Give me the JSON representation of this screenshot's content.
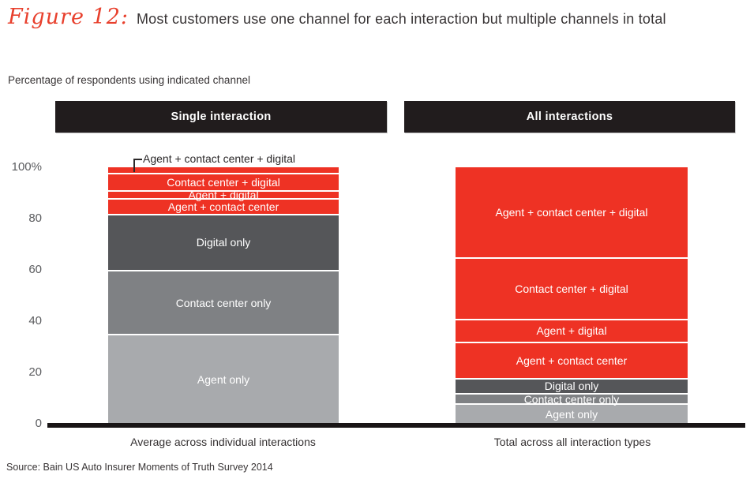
{
  "figure_label": "Figure 12:",
  "title": "Most customers use one channel for each interaction but multiple channels in total",
  "subtitle": "Percentage of respondents using indicated channel",
  "source": "Source: Bain US Auto Insurer Moments of Truth Survey 2014",
  "colors": {
    "red": "#ee3224",
    "dark_gray": "#555659",
    "medium_gray": "#7f8184",
    "light_gray": "#a8aaad",
    "header_bg": "#211c1d",
    "axis_line": "#191516",
    "segment_text": "#ffffff",
    "figure_label_red": "#e8402d"
  },
  "chart_data": {
    "type": "bar",
    "stacked": true,
    "ylim": [
      0,
      100
    ],
    "grid": false,
    "legend": "labels inside segments",
    "yticks": [
      {
        "label": "100%",
        "value": 100
      },
      {
        "label": "80",
        "value": 80
      },
      {
        "label": "60",
        "value": 60
      },
      {
        "label": "40",
        "value": 40
      },
      {
        "label": "20",
        "value": 20
      },
      {
        "label": "0",
        "value": 0
      }
    ],
    "segment_order": "bottom_to_top",
    "groups": [
      {
        "header": "Single interaction",
        "xlabel": "Average across individual interactions",
        "segments": [
          {
            "label": "Agent only",
            "value": 35,
            "color": "#a8aaad"
          },
          {
            "label": "Contact center only",
            "value": 25,
            "color": "#7f8184"
          },
          {
            "label": "Digital only",
            "value": 22,
            "color": "#555659"
          },
          {
            "label": "Agent + contact center",
            "value": 6,
            "color": "#ee3224"
          },
          {
            "label": "Agent + digital",
            "value": 3,
            "color": "#ee3224"
          },
          {
            "label": "Contact center + digital",
            "value": 7,
            "color": "#ee3224"
          },
          {
            "label": "Agent + contact center + digital",
            "value": 2,
            "color": "#ee3224",
            "callout": true
          }
        ]
      },
      {
        "header": "All interactions",
        "xlabel": "Total across all interaction types",
        "segments": [
          {
            "label": "Agent only",
            "value": 8,
            "color": "#a8aaad"
          },
          {
            "label": "Contact center only",
            "value": 4,
            "color": "#7f8184"
          },
          {
            "label": "Digital only",
            "value": 6,
            "color": "#555659"
          },
          {
            "label": "Agent + contact center",
            "value": 14,
            "color": "#ee3224"
          },
          {
            "label": "Agent + digital",
            "value": 9,
            "color": "#ee3224"
          },
          {
            "label": "Contact center + digital",
            "value": 24,
            "color": "#ee3224"
          },
          {
            "label": "Agent + contact center + digital",
            "value": 35,
            "color": "#ee3224"
          }
        ]
      }
    ]
  }
}
